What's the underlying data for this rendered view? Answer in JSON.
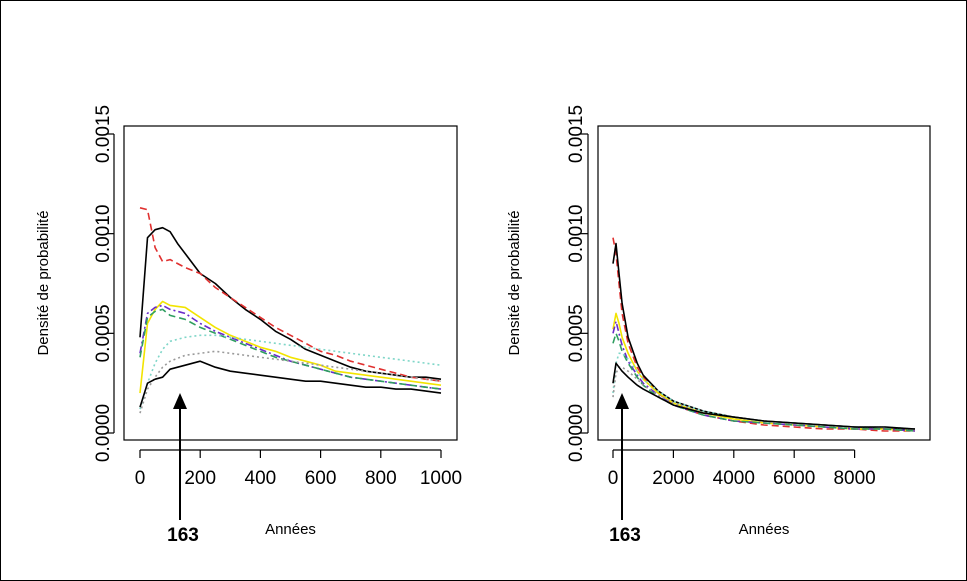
{
  "chart_data": [
    {
      "type": "line",
      "xlabel": "Années",
      "ylabel": "Densité de probabilité",
      "xlim": [
        0,
        1000
      ],
      "ylim": [
        0,
        0.0015
      ],
      "xticks": [
        0,
        200,
        400,
        600,
        800,
        1000
      ],
      "xtick_labels": [
        "0",
        "200",
        "400",
        "600",
        "800",
        "1000"
      ],
      "yticks": [
        0,
        0.0005,
        0.001,
        0.0015
      ],
      "ytick_labels": [
        "0.0000",
        "0.0005",
        "0.0010",
        "0.0015"
      ],
      "annotation": {
        "label": "163",
        "x": 163
      },
      "series": [
        {
          "color": "#000000",
          "dash": "solid",
          "x": [
            0,
            25,
            50,
            75,
            100,
            125,
            150,
            200,
            250,
            300,
            350,
            400,
            450,
            500,
            550,
            600,
            650,
            700,
            750,
            800,
            850,
            900,
            950,
            1000
          ],
          "y": [
            0.00048,
            0.00098,
            0.00102,
            0.00103,
            0.00101,
            0.00095,
            0.0009,
            0.0008,
            0.00075,
            0.00068,
            0.00062,
            0.00057,
            0.00051,
            0.00047,
            0.00042,
            0.00039,
            0.00036,
            0.00033,
            0.00031,
            0.0003,
            0.00029,
            0.00028,
            0.00028,
            0.00027
          ]
        },
        {
          "color": "#e0302f",
          "dash": "dashed",
          "x": [
            0,
            25,
            50,
            75,
            100,
            150,
            200,
            250,
            300,
            350,
            400,
            450,
            500,
            550,
            600,
            650,
            700,
            750,
            800,
            850,
            900,
            950,
            1000
          ],
          "y": [
            0.00113,
            0.00112,
            0.00093,
            0.00086,
            0.00087,
            0.00083,
            0.0008,
            0.00073,
            0.00068,
            0.00063,
            0.00058,
            0.00053,
            0.00049,
            0.00045,
            0.00041,
            0.00039,
            0.00036,
            0.00034,
            0.00032,
            0.0003,
            0.00028,
            0.00027,
            0.00026
          ]
        },
        {
          "color": "#f2e400",
          "dash": "solid",
          "x": [
            0,
            25,
            50,
            75,
            100,
            150,
            200,
            250,
            300,
            350,
            400,
            450,
            500,
            550,
            600,
            650,
            700,
            750,
            800,
            850,
            900,
            950,
            1000
          ],
          "y": [
            0.0002,
            0.00055,
            0.00062,
            0.00066,
            0.00064,
            0.00063,
            0.00058,
            0.00053,
            0.00049,
            0.00046,
            0.00043,
            0.00041,
            0.00038,
            0.00036,
            0.00034,
            0.00031,
            0.0003,
            0.00029,
            0.00028,
            0.00027,
            0.00026,
            0.00025,
            0.00024
          ]
        },
        {
          "color": "#6a2cc9",
          "dash": "dashdot",
          "x": [
            0,
            25,
            50,
            75,
            100,
            150,
            200,
            250,
            300,
            350,
            400,
            450,
            500,
            550,
            600,
            650,
            700,
            750,
            800,
            850,
            900,
            950,
            1000
          ],
          "y": [
            0.0004,
            0.0006,
            0.00063,
            0.00064,
            0.00062,
            0.0006,
            0.00055,
            0.00051,
            0.00048,
            0.00045,
            0.00042,
            0.00039,
            0.00036,
            0.00034,
            0.00032,
            0.0003,
            0.00028,
            0.00027,
            0.00026,
            0.00025,
            0.00024,
            0.00023,
            0.00022
          ]
        },
        {
          "color": "#2f9e60",
          "dash": "dashed",
          "x": [
            0,
            25,
            50,
            75,
            100,
            150,
            200,
            250,
            300,
            350,
            400,
            450,
            500,
            550,
            600,
            650,
            700,
            750,
            800,
            850,
            900,
            950,
            1000
          ],
          "y": [
            0.00038,
            0.00058,
            0.00061,
            0.00062,
            0.00059,
            0.00057,
            0.00053,
            0.0005,
            0.00047,
            0.00044,
            0.00041,
            0.00038,
            0.00036,
            0.00034,
            0.00032,
            0.0003,
            0.00028,
            0.00027,
            0.00026,
            0.00025,
            0.00024,
            0.00023,
            0.00022
          ]
        },
        {
          "color": "#7fd6c8",
          "dash": "dotted",
          "x": [
            0,
            25,
            50,
            75,
            100,
            150,
            200,
            250,
            300,
            350,
            400,
            450,
            500,
            550,
            600,
            650,
            700,
            750,
            800,
            850,
            900,
            950,
            1000
          ],
          "y": [
            0.00012,
            0.00025,
            0.00035,
            0.00042,
            0.00046,
            0.00048,
            0.00049,
            0.00049,
            0.00048,
            0.00047,
            0.00046,
            0.00045,
            0.00044,
            0.00043,
            0.00042,
            0.00041,
            0.0004,
            0.00039,
            0.00038,
            0.00037,
            0.00036,
            0.00035,
            0.00034
          ]
        },
        {
          "color": "#9a9a9a",
          "dash": "dotted",
          "x": [
            0,
            25,
            50,
            75,
            100,
            150,
            200,
            250,
            300,
            350,
            400,
            450,
            500,
            550,
            600,
            650,
            700,
            750,
            800,
            850,
            900,
            950,
            1000
          ],
          "y": [
            0.0001,
            0.00022,
            0.00028,
            0.00033,
            0.00036,
            0.00039,
            0.0004,
            0.00041,
            0.0004,
            0.00039,
            0.00038,
            0.00037,
            0.00036,
            0.00035,
            0.00034,
            0.00033,
            0.00032,
            0.00031,
            0.0003,
            0.00029,
            0.00028,
            0.00027,
            0.00026
          ]
        },
        {
          "color": "#000000",
          "dash": "solid",
          "x": [
            0,
            25,
            50,
            75,
            100,
            150,
            200,
            250,
            300,
            350,
            400,
            450,
            500,
            550,
            600,
            650,
            700,
            750,
            800,
            850,
            900,
            950,
            1000
          ],
          "y": [
            0.00013,
            0.00025,
            0.00027,
            0.00028,
            0.00032,
            0.00034,
            0.00036,
            0.00033,
            0.00031,
            0.0003,
            0.00029,
            0.00028,
            0.00027,
            0.00026,
            0.00026,
            0.00025,
            0.00024,
            0.00023,
            0.00023,
            0.00022,
            0.00022,
            0.00021,
            0.0002
          ]
        }
      ]
    },
    {
      "type": "line",
      "xlabel": "Années",
      "ylabel": "Densité de probabilité",
      "xlim": [
        0,
        10000
      ],
      "ylim": [
        0,
        0.0015
      ],
      "xticks": [
        0,
        2000,
        4000,
        6000,
        8000
      ],
      "xtick_labels": [
        "0",
        "2000",
        "4000",
        "6000",
        "8000"
      ],
      "yticks": [
        0,
        0.0005,
        0.001,
        0.0015
      ],
      "ytick_labels": [
        "0.0000",
        "0.0005",
        "0.0010",
        "0.0015"
      ],
      "annotation": {
        "label": "163",
        "x": 163
      },
      "series": [
        {
          "color": "#e0302f",
          "dash": "dashed",
          "x": [
            0,
            100,
            200,
            300,
            500,
            800,
            1000,
            1500,
            2000,
            3000,
            4000,
            5000,
            6000,
            7000,
            8000,
            9000,
            10000
          ],
          "y": [
            0.00098,
            0.0009,
            0.00075,
            0.0006,
            0.00045,
            0.00033,
            0.00028,
            0.0002,
            0.00014,
            9e-05,
            6e-05,
            4e-05,
            3e-05,
            2e-05,
            2e-05,
            1e-05,
            1e-05
          ]
        },
        {
          "color": "#000000",
          "dash": "solid",
          "x": [
            0,
            100,
            200,
            300,
            500,
            800,
            1000,
            1500,
            2000,
            3000,
            4000,
            5000,
            6000,
            7000,
            8000,
            9000,
            10000
          ],
          "y": [
            0.00085,
            0.00095,
            0.0008,
            0.00065,
            0.00048,
            0.00035,
            0.00029,
            0.00021,
            0.00016,
            0.00011,
            8e-05,
            6e-05,
            5e-05,
            4e-05,
            3e-05,
            2e-05,
            2e-05
          ]
        },
        {
          "color": "#f2e400",
          "dash": "solid",
          "x": [
            0,
            100,
            200,
            300,
            500,
            800,
            1000,
            1500,
            2000,
            3000,
            4000,
            5000,
            6000,
            7000,
            8000,
            9000,
            10000
          ],
          "y": [
            0.00052,
            0.0006,
            0.00055,
            0.00048,
            0.0004,
            0.00031,
            0.00027,
            0.0002,
            0.00015,
            0.0001,
            7e-05,
            5e-05,
            4e-05,
            3e-05,
            2e-05,
            2e-05,
            1e-05
          ]
        },
        {
          "color": "#6a2cc9",
          "dash": "dashdot",
          "x": [
            0,
            100,
            200,
            300,
            500,
            800,
            1000,
            1500,
            2000,
            3000,
            4000,
            5000,
            6000,
            7000,
            8000,
            9000,
            10000
          ],
          "y": [
            0.0005,
            0.00056,
            0.0005,
            0.00044,
            0.00036,
            0.00029,
            0.00025,
            0.00019,
            0.00014,
            9e-05,
            6e-05,
            5e-05,
            4e-05,
            3e-05,
            2e-05,
            2e-05,
            1e-05
          ]
        },
        {
          "color": "#2f9e60",
          "dash": "dashed",
          "x": [
            0,
            100,
            200,
            300,
            500,
            800,
            1000,
            1500,
            2000,
            3000,
            4000,
            5000,
            6000,
            7000,
            8000,
            9000,
            10000
          ],
          "y": [
            0.00045,
            0.0005,
            0.00046,
            0.00041,
            0.00035,
            0.00028,
            0.00024,
            0.00018,
            0.00014,
            9e-05,
            6e-05,
            5e-05,
            4e-05,
            3e-05,
            2e-05,
            2e-05,
            1e-05
          ]
        },
        {
          "color": "#7fd6c8",
          "dash": "dotted",
          "x": [
            0,
            100,
            200,
            300,
            500,
            800,
            1000,
            1500,
            2000,
            3000,
            4000,
            5000,
            6000,
            7000,
            8000,
            9000,
            10000
          ],
          "y": [
            0.0002,
            0.00035,
            0.0004,
            0.0004,
            0.00037,
            0.00031,
            0.00027,
            0.00021,
            0.00016,
            0.00011,
            8e-05,
            6e-05,
            5e-05,
            4e-05,
            3e-05,
            3e-05,
            2e-05
          ]
        },
        {
          "color": "#9a9a9a",
          "dash": "dotted",
          "x": [
            0,
            100,
            200,
            300,
            500,
            800,
            1000,
            1500,
            2000,
            3000,
            4000,
            5000,
            6000,
            7000,
            8000,
            9000,
            10000
          ],
          "y": [
            0.00018,
            0.0003,
            0.00033,
            0.00033,
            0.00031,
            0.00027,
            0.00024,
            0.00019,
            0.00015,
            0.0001,
            8e-05,
            6e-05,
            5e-05,
            4e-05,
            3e-05,
            3e-05,
            2e-05
          ]
        },
        {
          "color": "#000000",
          "dash": "solid",
          "x": [
            0,
            100,
            200,
            300,
            500,
            800,
            1000,
            1500,
            2000,
            3000,
            4000,
            5000,
            6000,
            7000,
            8000,
            9000,
            10000
          ],
          "y": [
            0.00025,
            0.00035,
            0.00033,
            0.00031,
            0.00028,
            0.00024,
            0.00022,
            0.00018,
            0.00014,
            0.0001,
            8e-05,
            6e-05,
            5e-05,
            4e-05,
            3e-05,
            3e-05,
            2e-05
          ]
        }
      ]
    }
  ]
}
